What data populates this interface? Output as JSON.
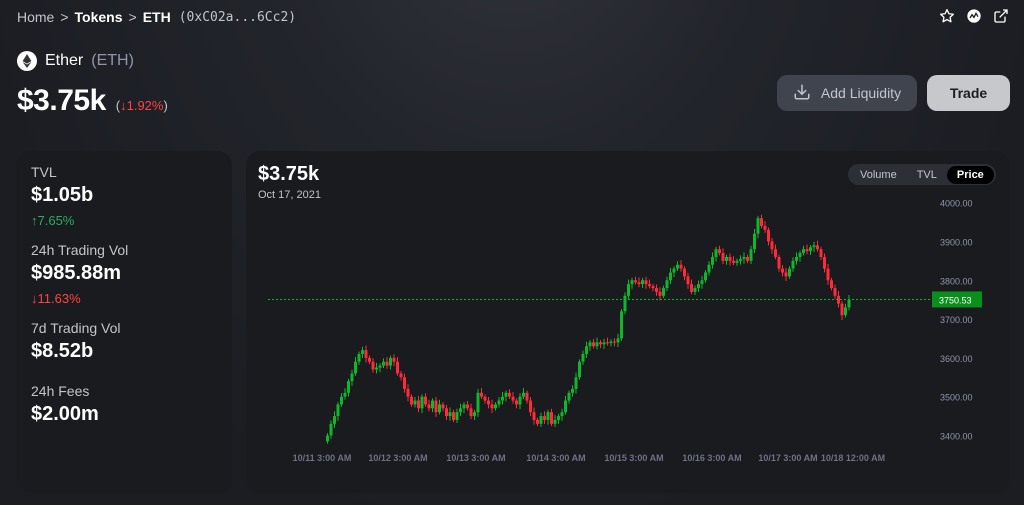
{
  "breadcrumb": {
    "home": "Home",
    "sep": ">",
    "tokens": "Tokens",
    "token": "ETH",
    "address": "(0xC02a...6Cc2)"
  },
  "icons": {
    "star": "star-icon",
    "analytics": "analytics-icon",
    "external": "external-link-icon"
  },
  "token": {
    "name": "Ether",
    "symbol": "(ETH)",
    "price": "$3.75k",
    "change": "↓1.92%",
    "open_paren": "(",
    "close_paren": ")"
  },
  "actions": {
    "add_liquidity": "Add Liquidity",
    "trade": "Trade"
  },
  "stats": [
    {
      "label": "TVL",
      "value": "$1.05b",
      "change": "↑7.65%",
      "direction": "up"
    },
    {
      "label": "24h Trading Vol",
      "value": "$985.88m",
      "change": "↓11.63%",
      "direction": "down"
    },
    {
      "label": "7d Trading Vol",
      "value": "$8.52b",
      "change": "",
      "direction": ""
    },
    {
      "label": "24h Fees",
      "value": "$2.00m",
      "change": "",
      "direction": ""
    }
  ],
  "chart": {
    "price": "$3.75k",
    "date": "Oct 17, 2021",
    "tabs": [
      {
        "label": "Volume",
        "active": false
      },
      {
        "label": "TVL",
        "active": false
      },
      {
        "label": "Price",
        "active": true
      }
    ]
  },
  "colors": {
    "up": "#27ae60",
    "down": "#ff4343",
    "candle_up": "#0fb82b",
    "candle_down": "#ff2b3a"
  },
  "chart_data": {
    "type": "candlestick",
    "y_ticks": [
      "4000.00",
      "3900.00",
      "3800.00",
      "3700.00",
      "3600.00",
      "3500.00",
      "3400.00"
    ],
    "ylim": [
      3360,
      4030
    ],
    "x_ticks": [
      "10/11 3:00 AM",
      "10/12 3:00 AM",
      "10/13 3:00 AM",
      "10/14 3:00 AM",
      "10/15 3:00 AM",
      "10/16 3:00 AM",
      "10/17 3:00 AM",
      "10/18 12:00 AM"
    ],
    "current_price": 3750.53,
    "current_price_label": "3750.53",
    "closes": [
      3400,
      3430,
      3450,
      3480,
      3500,
      3510,
      3540,
      3560,
      3590,
      3610,
      3620,
      3600,
      3590,
      3570,
      3575,
      3580,
      3590,
      3580,
      3600,
      3590,
      3560,
      3550,
      3520,
      3500,
      3480,
      3490,
      3470,
      3500,
      3480,
      3470,
      3490,
      3460,
      3480,
      3470,
      3450,
      3460,
      3440,
      3460,
      3470,
      3480,
      3470,
      3450,
      3460,
      3510,
      3500,
      3490,
      3480,
      3470,
      3480,
      3490,
      3500,
      3510,
      3500,
      3490,
      3480,
      3500,
      3510,
      3490,
      3460,
      3440,
      3430,
      3450,
      3440,
      3460,
      3430,
      3440,
      3450,
      3460,
      3490,
      3510,
      3520,
      3550,
      3590,
      3610,
      3630,
      3640,
      3630,
      3640,
      3635,
      3640,
      3638,
      3642,
      3640,
      3650,
      3720,
      3760,
      3790,
      3800,
      3795,
      3790,
      3800,
      3790,
      3785,
      3780,
      3770,
      3760,
      3780,
      3800,
      3820,
      3830,
      3840,
      3830,
      3810,
      3790,
      3770,
      3780,
      3790,
      3800,
      3820,
      3840,
      3860,
      3880,
      3870,
      3850,
      3860,
      3850,
      3845,
      3850,
      3855,
      3860,
      3850,
      3880,
      3920,
      3960,
      3940,
      3930,
      3900,
      3880,
      3860,
      3830,
      3820,
      3810,
      3830,
      3850,
      3860,
      3870,
      3880,
      3875,
      3885,
      3890,
      3880,
      3860,
      3830,
      3800,
      3780,
      3760,
      3740,
      3710,
      3730,
      3750
    ],
    "opens_note": ""
  }
}
